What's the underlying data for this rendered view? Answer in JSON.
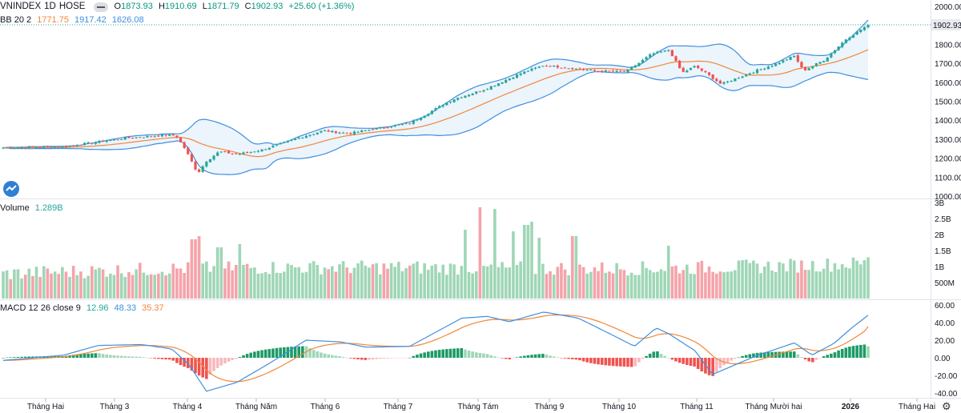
{
  "header": {
    "symbol": "VNINDEX",
    "interval": "1D",
    "exchange": "HOSE",
    "open_label": "O",
    "open": "1873.93",
    "high_label": "H",
    "high": "1910.69",
    "low_label": "L",
    "low": "1871.79",
    "close_label": "C",
    "close": "1902.93",
    "change": "+25.60 (+1.36%)"
  },
  "bb_legend": {
    "label": "BB 20 2",
    "basis": "1771.75",
    "upper": "1917.42",
    "lower": "1626.08"
  },
  "volume_legend": {
    "label": "Volume",
    "value": "1.289B"
  },
  "macd_legend": {
    "label": "MACD 12 26 close 9",
    "hist": "12.96",
    "macd": "48.33",
    "signal": "35.37"
  },
  "colors": {
    "up": "#26a69a",
    "down": "#ef5350",
    "vol_up": "#9fd6b6",
    "vol_down": "#f5a3aa",
    "basis": "#f0873a",
    "band": "#3f8fe0",
    "band_fill": "#e7f1fb",
    "macd": "#3f8fe0",
    "signal": "#f0873a",
    "hist_up_strong": "#1e9a66",
    "hist_up_weak": "#9fd6b6",
    "hist_down_strong": "#ef5350",
    "hist_down_weak": "#f7b9bd",
    "last_price_bg": "#e9eaed",
    "grid": "#f0f3fa",
    "text": "#131722"
  },
  "chart_data": [
    {
      "type": "candlestick",
      "title": "VNINDEX 1D HOSE",
      "price_axis": {
        "min": 1000,
        "max": 2000,
        "ticks": [
          "1000.00",
          "1100.00",
          "1200.00",
          "1300.00",
          "1400.00",
          "1500.00",
          "1600.00",
          "1700.00",
          "1800.00",
          "1900.00",
          "2000.00"
        ]
      },
      "last_price": "1902.93",
      "anchors": [
        {
          "t": 0,
          "close": 1255
        },
        {
          "t": 0.07,
          "close": 1260
        },
        {
          "t": 0.14,
          "close": 1305
        },
        {
          "t": 0.19,
          "close": 1322
        },
        {
          "t": 0.2,
          "close": 1318
        },
        {
          "t": 0.21,
          "close": 1250
        },
        {
          "t": 0.225,
          "close": 1120
        },
        {
          "t": 0.235,
          "close": 1185
        },
        {
          "t": 0.25,
          "close": 1235
        },
        {
          "t": 0.27,
          "close": 1220
        },
        {
          "t": 0.3,
          "close": 1245
        },
        {
          "t": 0.34,
          "close": 1305
        },
        {
          "t": 0.37,
          "close": 1345
        },
        {
          "t": 0.4,
          "close": 1330
        },
        {
          "t": 0.43,
          "close": 1355
        },
        {
          "t": 0.47,
          "close": 1385
        },
        {
          "t": 0.52,
          "close": 1510
        },
        {
          "t": 0.555,
          "close": 1560
        },
        {
          "t": 0.6,
          "close": 1650
        },
        {
          "t": 0.625,
          "close": 1690
        },
        {
          "t": 0.645,
          "close": 1680
        },
        {
          "t": 0.685,
          "close": 1660
        },
        {
          "t": 0.72,
          "close": 1655
        },
        {
          "t": 0.75,
          "close": 1750
        },
        {
          "t": 0.77,
          "close": 1770
        },
        {
          "t": 0.785,
          "close": 1650
        },
        {
          "t": 0.8,
          "close": 1685
        },
        {
          "t": 0.815,
          "close": 1640
        },
        {
          "t": 0.83,
          "close": 1590
        },
        {
          "t": 0.87,
          "close": 1660
        },
        {
          "t": 0.895,
          "close": 1700
        },
        {
          "t": 0.915,
          "close": 1740
        },
        {
          "t": 0.925,
          "close": 1660
        },
        {
          "t": 0.95,
          "close": 1720
        },
        {
          "t": 0.975,
          "close": 1830
        },
        {
          "t": 1,
          "close": 1902.93
        }
      ],
      "bollinger": {
        "period": 20,
        "stddev": 2,
        "basis": 1771.75,
        "upper": 1917.42,
        "lower": 1626.08
      }
    },
    {
      "type": "bar",
      "title": "Volume",
      "axis_ticks": [
        "500M",
        "1B",
        "1.5B",
        "2B",
        "2.5B",
        "3B"
      ],
      "last_value": "1.289B",
      "spikes": [
        {
          "t": 0.22,
          "value": 1.85
        },
        {
          "t": 0.225,
          "value": 1.95
        },
        {
          "t": 0.25,
          "value": 1.6
        },
        {
          "t": 0.272,
          "value": 1.7
        },
        {
          "t": 0.535,
          "value": 2.15
        },
        {
          "t": 0.55,
          "value": 2.85
        },
        {
          "t": 0.567,
          "value": 2.8
        },
        {
          "t": 0.59,
          "value": 2.1
        },
        {
          "t": 0.605,
          "value": 2.3
        },
        {
          "t": 0.61,
          "value": 2.4
        },
        {
          "t": 0.62,
          "value": 1.9
        },
        {
          "t": 0.66,
          "value": 1.95
        },
        {
          "t": 0.77,
          "value": 1.65
        },
        {
          "t": 1,
          "value": 1.289
        }
      ]
    },
    {
      "type": "macd",
      "title": "MACD 12 26 close 9",
      "axis_ticks": [
        "60.00",
        "40.00",
        "20.00",
        "0.00",
        "-20.00",
        "-40.00"
      ],
      "macd_anchors": [
        {
          "t": 0,
          "v": -3
        },
        {
          "t": 0.07,
          "v": 3
        },
        {
          "t": 0.11,
          "v": 14
        },
        {
          "t": 0.16,
          "v": 15
        },
        {
          "t": 0.195,
          "v": 10
        },
        {
          "t": 0.215,
          "v": -8
        },
        {
          "t": 0.235,
          "v": -38
        },
        {
          "t": 0.27,
          "v": -28
        },
        {
          "t": 0.31,
          "v": -5
        },
        {
          "t": 0.35,
          "v": 20
        },
        {
          "t": 0.39,
          "v": 18
        },
        {
          "t": 0.42,
          "v": 12
        },
        {
          "t": 0.47,
          "v": 13
        },
        {
          "t": 0.53,
          "v": 45
        },
        {
          "t": 0.56,
          "v": 47
        },
        {
          "t": 0.585,
          "v": 41
        },
        {
          "t": 0.625,
          "v": 52
        },
        {
          "t": 0.665,
          "v": 45
        },
        {
          "t": 0.7,
          "v": 28
        },
        {
          "t": 0.73,
          "v": 13
        },
        {
          "t": 0.755,
          "v": 34
        },
        {
          "t": 0.77,
          "v": 27
        },
        {
          "t": 0.8,
          "v": 8
        },
        {
          "t": 0.82,
          "v": -19
        },
        {
          "t": 0.87,
          "v": 2
        },
        {
          "t": 0.9,
          "v": 12
        },
        {
          "t": 0.915,
          "v": 17
        },
        {
          "t": 0.935,
          "v": 3
        },
        {
          "t": 0.96,
          "v": 16
        },
        {
          "t": 0.98,
          "v": 33
        },
        {
          "t": 1,
          "v": 48.33
        }
      ]
    }
  ],
  "time_axis": {
    "labels": [
      "Tháng Hai",
      "Tháng 3",
      "Tháng 4",
      "Tháng Năm",
      "Tháng 6",
      "Tháng 7",
      "Tháng Tám",
      "Tháng 9",
      "Tháng 10",
      "Tháng 11",
      "Tháng Mười hai",
      "2026",
      "Tháng Hai"
    ]
  }
}
